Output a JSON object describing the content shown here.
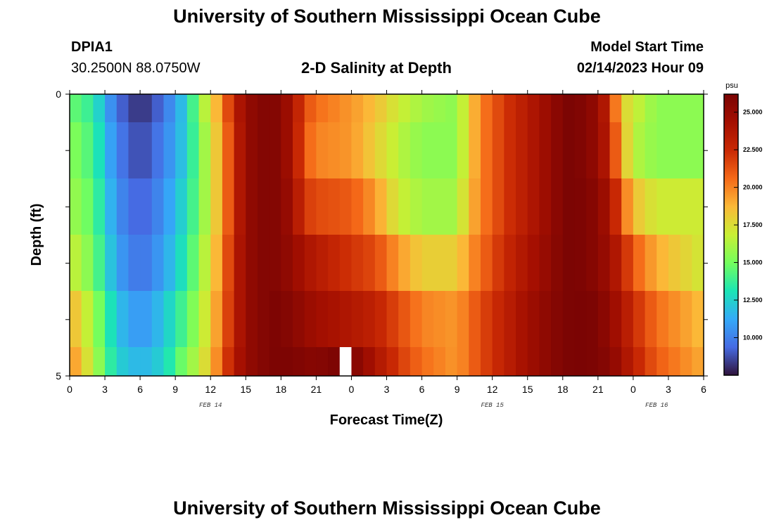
{
  "header": {
    "title": "University of Southern Mississippi Ocean Cube",
    "station": "DPIA1",
    "coords": "30.2500N  88.0750W",
    "subtitle": "2-D Salinity at Depth",
    "model_start_label": "Model Start Time",
    "model_start_value": "02/14/2023 Hour 09"
  },
  "footer": {
    "title": "University of Southern Mississippi Ocean Cube"
  },
  "chart_data": {
    "type": "heatmap",
    "xlabel": "Forecast Time(Z)",
    "ylabel": "Depth (ft)",
    "x_tick_labels": [
      "0",
      "3",
      "6",
      "9",
      "12",
      "15",
      "18",
      "21",
      "0",
      "3",
      "6",
      "9",
      "12",
      "15",
      "18",
      "21",
      "0",
      "3",
      "6"
    ],
    "date_labels": [
      "FEB 14",
      "FEB 15",
      "FEB 16"
    ],
    "y_tick_labels": [
      "0",
      "5"
    ],
    "ylim": [
      0,
      5
    ],
    "colorbar": {
      "unit": "psu",
      "range": [
        7.5,
        26.2
      ],
      "tick_values": [
        10.0,
        12.5,
        15.0,
        17.5,
        20.0,
        22.5,
        25.0
      ],
      "tick_labels": [
        "10.000",
        "12.500",
        "15.000",
        "17.500",
        "20.000",
        "22.500",
        "25.000"
      ],
      "colormap": "turbo"
    },
    "depth_layers": [
      "0-0.5",
      "0.5-1.5",
      "1.5-2.5",
      "2.5-3.5",
      "3.5-4.5",
      "4.5-5"
    ],
    "time_start": "02/14/2023 Hour 00",
    "time_step_hours": 1,
    "missing_hours": [
      23
    ],
    "layer_profiles": [
      [
        [
          0,
          14.8
        ],
        [
          2,
          13.5
        ],
        [
          4,
          9.5
        ],
        [
          6,
          8.0
        ],
        [
          8,
          9.5
        ],
        [
          10,
          12.5
        ],
        [
          11,
          15.5
        ],
        [
          12,
          17.5
        ],
        [
          13,
          20
        ],
        [
          14,
          23
        ],
        [
          15,
          25
        ],
        [
          17,
          26
        ],
        [
          18,
          25.5
        ],
        [
          19,
          24
        ],
        [
          20,
          21.5
        ],
        [
          21,
          20.5
        ],
        [
          24,
          19.5
        ],
        [
          26,
          18.5
        ],
        [
          28,
          17
        ],
        [
          30,
          16
        ],
        [
          33,
          15.5
        ],
        [
          34,
          18
        ],
        [
          35,
          20
        ],
        [
          37,
          22
        ],
        [
          39,
          23.5
        ],
        [
          41,
          25
        ],
        [
          42,
          26
        ],
        [
          43,
          26.2
        ],
        [
          45,
          25
        ],
        [
          46,
          22.5
        ],
        [
          47,
          18
        ],
        [
          48,
          17
        ],
        [
          50,
          15.5
        ],
        [
          54,
          15.5
        ]
      ],
      [
        [
          0,
          15.5
        ],
        [
          2,
          14
        ],
        [
          4,
          10
        ],
        [
          6,
          8.5
        ],
        [
          8,
          10
        ],
        [
          10,
          12.5
        ],
        [
          11,
          15
        ],
        [
          12,
          17
        ],
        [
          13,
          19.5
        ],
        [
          14,
          22.5
        ],
        [
          15,
          25
        ],
        [
          17,
          26
        ],
        [
          18,
          25.5
        ],
        [
          19,
          24
        ],
        [
          20,
          21
        ],
        [
          21,
          20
        ],
        [
          24,
          19.5
        ],
        [
          26,
          18
        ],
        [
          28,
          16.5
        ],
        [
          30,
          15.5
        ],
        [
          33,
          15.5
        ],
        [
          34,
          18
        ],
        [
          35,
          20
        ],
        [
          37,
          22
        ],
        [
          39,
          23.5
        ],
        [
          41,
          25
        ],
        [
          42,
          26
        ],
        [
          43,
          26.2
        ],
        [
          45,
          25
        ],
        [
          46,
          23
        ],
        [
          47,
          19
        ],
        [
          48,
          16.5
        ],
        [
          50,
          15.5
        ],
        [
          54,
          15.5
        ]
      ],
      [
        [
          0,
          16
        ],
        [
          2,
          14.5
        ],
        [
          4,
          10.5
        ],
        [
          6,
          9
        ],
        [
          8,
          10.5
        ],
        [
          10,
          13
        ],
        [
          11,
          15
        ],
        [
          12,
          17
        ],
        [
          13,
          19.5
        ],
        [
          14,
          22.5
        ],
        [
          15,
          25
        ],
        [
          17,
          26
        ],
        [
          18,
          25.5
        ],
        [
          19,
          24.5
        ],
        [
          20,
          22
        ],
        [
          21,
          21.5
        ],
        [
          24,
          21
        ],
        [
          26,
          19.5
        ],
        [
          28,
          17
        ],
        [
          30,
          16
        ],
        [
          33,
          16
        ],
        [
          34,
          18.5
        ],
        [
          35,
          20
        ],
        [
          37,
          22
        ],
        [
          39,
          23.5
        ],
        [
          41,
          25
        ],
        [
          42,
          26
        ],
        [
          43,
          26.2
        ],
        [
          45,
          25.5
        ],
        [
          46,
          24
        ],
        [
          47,
          21
        ],
        [
          48,
          18.5
        ],
        [
          50,
          17
        ],
        [
          54,
          17
        ]
      ],
      [
        [
          0,
          17
        ],
        [
          2,
          15
        ],
        [
          4,
          11
        ],
        [
          6,
          9.5
        ],
        [
          8,
          11
        ],
        [
          10,
          13.5
        ],
        [
          11,
          15.5
        ],
        [
          12,
          17.5
        ],
        [
          13,
          20
        ],
        [
          14,
          23
        ],
        [
          15,
          25
        ],
        [
          17,
          26
        ],
        [
          18,
          25.5
        ],
        [
          19,
          25
        ],
        [
          20,
          24
        ],
        [
          21,
          23.5
        ],
        [
          23,
          22.5
        ],
        [
          26,
          21.5
        ],
        [
          28,
          19.5
        ],
        [
          30,
          18
        ],
        [
          33,
          18
        ],
        [
          34,
          19.5
        ],
        [
          35,
          20.5
        ],
        [
          37,
          22.5
        ],
        [
          39,
          24
        ],
        [
          41,
          25.2
        ],
        [
          42,
          26
        ],
        [
          43,
          26.2
        ],
        [
          45,
          25.5
        ],
        [
          46,
          24.5
        ],
        [
          47,
          23
        ],
        [
          48,
          21
        ],
        [
          50,
          19
        ],
        [
          54,
          17
        ]
      ],
      [
        [
          0,
          19
        ],
        [
          2,
          16
        ],
        [
          4,
          12
        ],
        [
          6,
          10.5
        ],
        [
          8,
          12
        ],
        [
          10,
          14.5
        ],
        [
          11,
          16
        ],
        [
          12,
          18
        ],
        [
          13,
          20.5
        ],
        [
          14,
          23
        ],
        [
          15,
          25
        ],
        [
          17,
          26
        ],
        [
          18,
          26
        ],
        [
          19,
          25.5
        ],
        [
          20,
          25
        ],
        [
          21,
          24.5
        ],
        [
          23,
          24
        ],
        [
          26,
          23
        ],
        [
          28,
          21.5
        ],
        [
          30,
          20
        ],
        [
          33,
          19.5
        ],
        [
          34,
          20.5
        ],
        [
          35,
          21.5
        ],
        [
          37,
          23
        ],
        [
          39,
          24.5
        ],
        [
          41,
          25.5
        ],
        [
          42,
          26
        ],
        [
          43,
          26.2
        ],
        [
          45,
          26
        ],
        [
          46,
          25
        ],
        [
          47,
          24
        ],
        [
          48,
          22.5
        ],
        [
          50,
          20.5
        ],
        [
          54,
          18.5
        ]
      ],
      [
        [
          0,
          20
        ],
        [
          2,
          16.5
        ],
        [
          4,
          12.5
        ],
        [
          6,
          11.5
        ],
        [
          8,
          12.5
        ],
        [
          10,
          15.5
        ],
        [
          11,
          16.5
        ],
        [
          12,
          18.5
        ],
        [
          13,
          21
        ],
        [
          14,
          23.5
        ],
        [
          15,
          25
        ],
        [
          17,
          26
        ],
        [
          18,
          26.1
        ],
        [
          19,
          26
        ],
        [
          20,
          25.8
        ],
        [
          21,
          25.5
        ],
        [
          22,
          26
        ],
        [
          24,
          26
        ],
        [
          26,
          24
        ],
        [
          28,
          22
        ],
        [
          30,
          20.5
        ],
        [
          33,
          19.5
        ],
        [
          34,
          20.5
        ],
        [
          35,
          21.5
        ],
        [
          37,
          23
        ],
        [
          39,
          24.5
        ],
        [
          41,
          25.5
        ],
        [
          42,
          26
        ],
        [
          43,
          26.2
        ],
        [
          45,
          26
        ],
        [
          46,
          25.5
        ],
        [
          47,
          24.5
        ],
        [
          48,
          23
        ],
        [
          50,
          21
        ],
        [
          54,
          19
        ]
      ]
    ]
  }
}
